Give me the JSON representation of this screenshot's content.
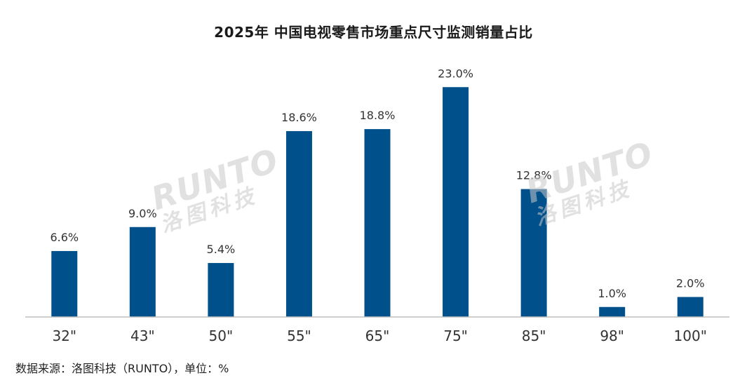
{
  "chart_data": {
    "type": "bar",
    "title": "2025年 中国电视零售市场重点尺寸监测销量占比",
    "categories": [
      "32\"",
      "43\"",
      "50\"",
      "55\"",
      "65\"",
      "75\"",
      "85\"",
      "98\"",
      "100\""
    ],
    "values": [
      6.6,
      9.0,
      5.4,
      18.6,
      18.8,
      23.0,
      12.8,
      1.0,
      2.0
    ],
    "data_labels": [
      "6.6%",
      "9.0%",
      "5.4%",
      "18.6%",
      "18.8%",
      "23.0%",
      "12.8%",
      "1.0%",
      "2.0%"
    ],
    "xlabel": "",
    "ylabel": "",
    "ylim": [
      0,
      25
    ],
    "grid": false,
    "legend": "none",
    "bar_color": "#00508c",
    "axis_color": "#bfbfbf"
  },
  "footer": {
    "source": "数据来源：洛图科技（RUNTO），单位：%"
  },
  "watermark": {
    "latin": "RUNTO",
    "cjk": "洛图科技"
  }
}
